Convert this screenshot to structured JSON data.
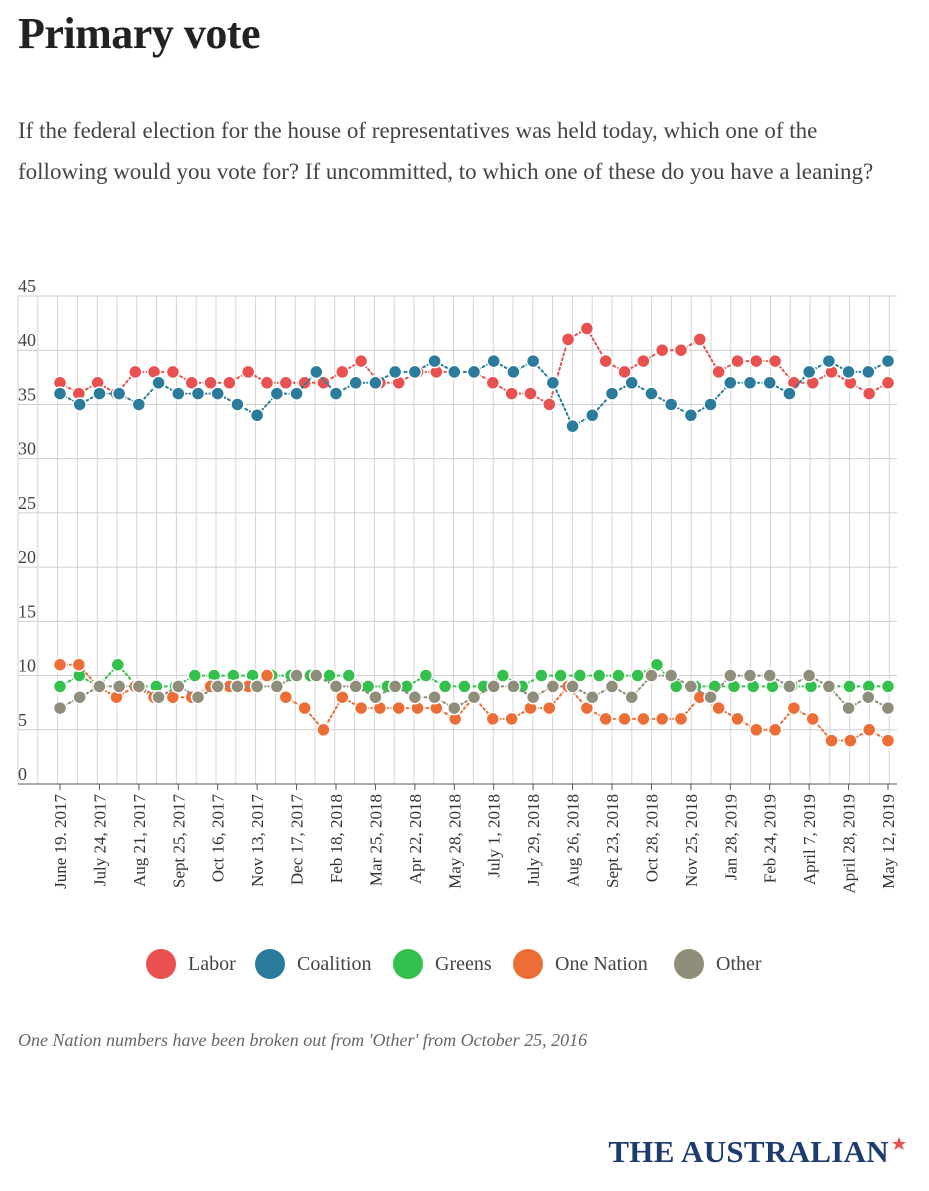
{
  "header": {
    "title": "Primary vote",
    "subtitle": "If the federal election for the house of representatives was held today, which one of the following would you vote for? If uncommitted, to which one of these do you have a leaning?"
  },
  "footer": {
    "note": "One Nation numbers have been broken out from 'Other' from October 25, 2016",
    "logo": "THE AUSTRALIAN"
  },
  "chart_data": {
    "type": "line",
    "title": "Primary vote",
    "xlabel": "",
    "ylabel": "",
    "ylim": [
      0,
      45
    ],
    "yticks": [
      0,
      5,
      10,
      15,
      20,
      25,
      30,
      35,
      40,
      45
    ],
    "grid": true,
    "legend_position": "bottom",
    "x_tick_labels": [
      "June 19. 2017",
      "July 24, 2017",
      "Aug 21, 2017",
      "Sept 25, 2017",
      "Oct 16, 2017",
      "Nov 13, 2017",
      "Dec 17, 2017",
      "Feb 18, 2018",
      "Mar 25, 2018",
      "Apr 22, 2018",
      "May 28, 2018",
      "July 1, 2018",
      "July 29, 2018",
      "Aug 26, 2018",
      "Sept 23, 2018",
      "Oct 28, 2018",
      "Nov 25, 2018",
      "Jan 28, 2019",
      "Feb 24, 2019",
      "April 7, 2019",
      "April 28, 2019",
      "May 12, 2019"
    ],
    "series": [
      {
        "name": "Labor",
        "color": "#e8514f",
        "values": [
          37,
          36,
          37,
          36,
          38,
          38,
          38,
          37,
          37,
          37,
          38,
          37,
          37,
          37,
          37,
          38,
          39,
          37,
          37,
          38,
          38,
          38,
          38,
          37,
          36,
          36,
          35,
          41,
          42,
          39,
          38,
          39,
          40,
          40,
          41,
          38,
          39,
          39,
          39,
          37,
          37,
          38,
          37,
          36,
          37
        ]
      },
      {
        "name": "Coalition",
        "color": "#2b7c9c",
        "values": [
          36,
          35,
          36,
          36,
          35,
          37,
          36,
          36,
          36,
          35,
          34,
          36,
          36,
          38,
          36,
          37,
          37,
          38,
          38,
          39,
          38,
          38,
          39,
          38,
          39,
          37,
          33,
          34,
          36,
          37,
          36,
          35,
          34,
          35,
          37,
          37,
          37,
          36,
          38,
          39,
          38,
          38,
          39
        ]
      },
      {
        "name": "Greens",
        "color": "#33c04d",
        "values": [
          9,
          10,
          9,
          11,
          9,
          9,
          9,
          10,
          10,
          10,
          10,
          10,
          10,
          10,
          10,
          10,
          9,
          9,
          9,
          10,
          9,
          9,
          9,
          10,
          9,
          10,
          10,
          10,
          10,
          10,
          10,
          11,
          9,
          9,
          9,
          9,
          9,
          9,
          9,
          9,
          9,
          9,
          9,
          9
        ]
      },
      {
        "name": "One Nation",
        "color": "#ec6e36",
        "values": [
          11,
          11,
          9,
          8,
          9,
          8,
          8,
          8,
          9,
          9,
          9,
          10,
          8,
          7,
          5,
          8,
          7,
          7,
          7,
          7,
          7,
          6,
          8,
          6,
          6,
          7,
          7,
          9,
          7,
          6,
          6,
          6,
          6,
          6,
          8,
          7,
          6,
          5,
          5,
          7,
          6,
          4,
          4,
          5,
          4
        ]
      },
      {
        "name": "Other",
        "color": "#8f8e7a",
        "values": [
          7,
          8,
          9,
          9,
          9,
          8,
          9,
          8,
          9,
          9,
          9,
          9,
          10,
          10,
          9,
          9,
          8,
          9,
          8,
          8,
          7,
          8,
          9,
          9,
          8,
          9,
          9,
          8,
          9,
          8,
          10,
          10,
          9,
          8,
          10,
          10,
          10,
          9,
          10,
          9,
          7,
          8,
          7
        ]
      }
    ]
  }
}
